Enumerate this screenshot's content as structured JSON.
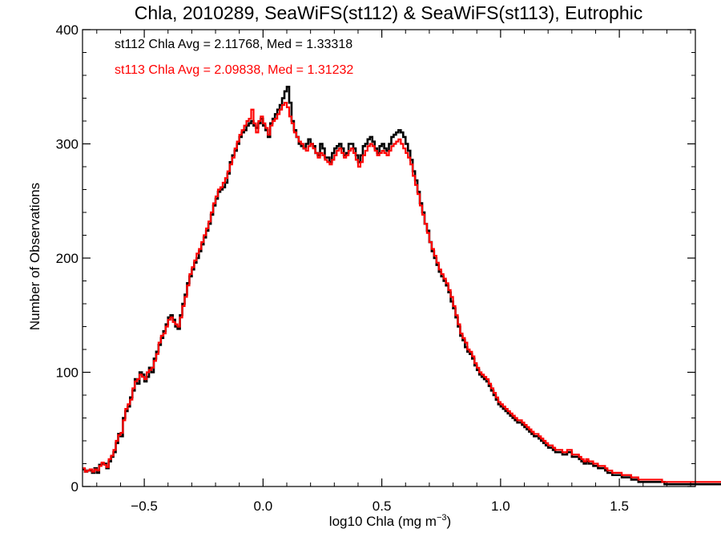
{
  "chart_data": {
    "type": "histogram",
    "title": "Chla, 2010289, SeaWiFS(st112) & SeaWiFS(st113), Eutrophic",
    "xlabel": "log10 Chla (mg m",
    "xlabel_sup": "−3",
    "xlabel_close": ")",
    "ylabel": "Number of Observations",
    "xlim": [
      -0.76,
      1.82
    ],
    "ylim": [
      0,
      400
    ],
    "x_ticks": [
      -0.5,
      0.0,
      0.5,
      1.0,
      1.5
    ],
    "x_tick_labels": [
      "−0.5",
      "0.0",
      "0.5",
      "1.0",
      "1.5"
    ],
    "y_ticks": [
      0,
      100,
      200,
      300,
      400
    ],
    "y_tick_labels": [
      "0",
      "100",
      "200",
      "300",
      "400"
    ],
    "annotations": [
      {
        "text": "st112 Chla Avg = 2.11768, Med = 1.33318",
        "color": "#000000"
      },
      {
        "text": "st113 Chla Avg = 2.09838, Med = 1.31232",
        "color": "#ff0000"
      }
    ],
    "bin_width": 0.01,
    "series": [
      {
        "color": "#000000",
        "x_start": -0.76,
        "values": [
          15,
          13,
          14,
          14,
          12,
          16,
          12,
          19,
          20,
          20,
          16,
          22,
          26,
          30,
          38,
          46,
          44,
          60,
          66,
          70,
          78,
          84,
          94,
          90,
          100,
          98,
          92,
          96,
          104,
          100,
          112,
          118,
          124,
          130,
          136,
          142,
          148,
          150,
          146,
          140,
          138,
          150,
          160,
          168,
          178,
          184,
          190,
          196,
          200,
          206,
          212,
          218,
          224,
          230,
          238,
          246,
          252,
          258,
          260,
          262,
          266,
          274,
          284,
          290,
          294,
          300,
          306,
          310,
          312,
          316,
          318,
          320,
          316,
          314,
          318,
          322,
          316,
          312,
          306,
          318,
          322,
          326,
          330,
          334,
          340,
          346,
          350,
          336,
          320,
          312,
          306,
          300,
          298,
          296,
          300,
          304,
          300,
          298,
          292,
          290,
          300,
          296,
          288,
          288,
          284,
          292,
          296,
          298,
          300,
          296,
          290,
          292,
          300,
          300,
          296,
          290,
          284,
          290,
          298,
          300,
          304,
          306,
          302,
          296,
          292,
          298,
          300,
          296,
          294,
          300,
          306,
          308,
          310,
          312,
          310,
          306,
          300,
          294,
          286,
          276,
          268,
          258,
          248,
          240,
          230,
          224,
          214,
          206,
          200,
          194,
          188,
          184,
          180,
          176,
          170,
          162,
          156,
          148,
          140,
          132,
          128,
          122,
          118,
          116,
          112,
          106,
          102,
          98,
          96,
          94,
          92,
          88,
          84,
          80,
          76,
          72,
          70,
          68,
          66,
          64,
          62,
          60,
          58,
          56,
          56,
          54,
          52,
          50,
          48,
          46,
          44,
          44,
          42,
          40,
          38,
          36,
          34,
          34,
          32,
          30,
          30,
          30,
          28,
          28,
          30,
          30,
          26,
          26,
          26,
          24,
          22,
          20,
          22,
          20,
          20,
          18,
          18,
          16,
          16,
          16,
          14,
          12,
          12,
          10,
          10,
          10,
          10,
          8,
          8,
          8,
          8,
          6,
          6,
          6,
          4,
          4,
          4,
          4,
          4,
          4,
          4,
          4,
          4,
          4,
          4,
          2,
          2,
          2,
          2,
          2,
          2,
          2,
          2,
          2,
          2,
          2,
          2,
          2,
          2,
          2,
          2,
          2,
          2,
          2,
          2,
          2,
          2,
          2,
          2,
          2,
          2,
          2,
          2,
          2,
          2,
          2,
          2,
          2,
          2,
          2,
          2
        ]
      },
      {
        "color": "#ff0000",
        "x_start": -0.76,
        "values": [
          16,
          13,
          14,
          15,
          13,
          15,
          14,
          18,
          21,
          19,
          17,
          24,
          27,
          32,
          40,
          45,
          47,
          58,
          68,
          72,
          76,
          86,
          92,
          94,
          98,
          96,
          94,
          100,
          102,
          104,
          110,
          116,
          126,
          132,
          134,
          140,
          146,
          148,
          144,
          142,
          140,
          148,
          158,
          166,
          176,
          186,
          192,
          198,
          204,
          208,
          214,
          220,
          226,
          232,
          240,
          248,
          254,
          260,
          262,
          266,
          270,
          276,
          282,
          288,
          296,
          302,
          308,
          312,
          316,
          320,
          322,
          330,
          318,
          310,
          320,
          324,
          318,
          314,
          308,
          316,
          320,
          322,
          326,
          330,
          334,
          336,
          332,
          324,
          318,
          310,
          306,
          302,
          300,
          296,
          294,
          298,
          300,
          296,
          292,
          288,
          292,
          290,
          286,
          284,
          282,
          286,
          290,
          294,
          296,
          292,
          288,
          290,
          294,
          296,
          292,
          286,
          280,
          284,
          290,
          294,
          298,
          300,
          298,
          294,
          290,
          292,
          294,
          292,
          290,
          294,
          298,
          300,
          302,
          304,
          300,
          296,
          292,
          288,
          282,
          272,
          264,
          256,
          246,
          238,
          230,
          222,
          214,
          208,
          202,
          196,
          190,
          186,
          182,
          178,
          172,
          166,
          158,
          150,
          142,
          134,
          130,
          126,
          120,
          118,
          114,
          108,
          104,
          100,
          98,
          96,
          94,
          90,
          86,
          82,
          78,
          74,
          72,
          70,
          68,
          66,
          64,
          62,
          60,
          58,
          58,
          56,
          54,
          52,
          50,
          48,
          46,
          46,
          44,
          42,
          40,
          38,
          36,
          36,
          34,
          32,
          32,
          32,
          30,
          30,
          32,
          32,
          28,
          28,
          28,
          26,
          24,
          22,
          24,
          22,
          22,
          20,
          20,
          18,
          18,
          18,
          16,
          14,
          14,
          12,
          12,
          12,
          12,
          10,
          10,
          10,
          10,
          8,
          8,
          8,
          6,
          6,
          6,
          6,
          6,
          6,
          6,
          6,
          6,
          6,
          4,
          4,
          4,
          4,
          4,
          4,
          4,
          4,
          4,
          4,
          4,
          4,
          4,
          4,
          4,
          4,
          4,
          4,
          4,
          4,
          4,
          4,
          4,
          4,
          4,
          4,
          4,
          4,
          4,
          4,
          4,
          4,
          4,
          4,
          4,
          4
        ]
      }
    ]
  }
}
